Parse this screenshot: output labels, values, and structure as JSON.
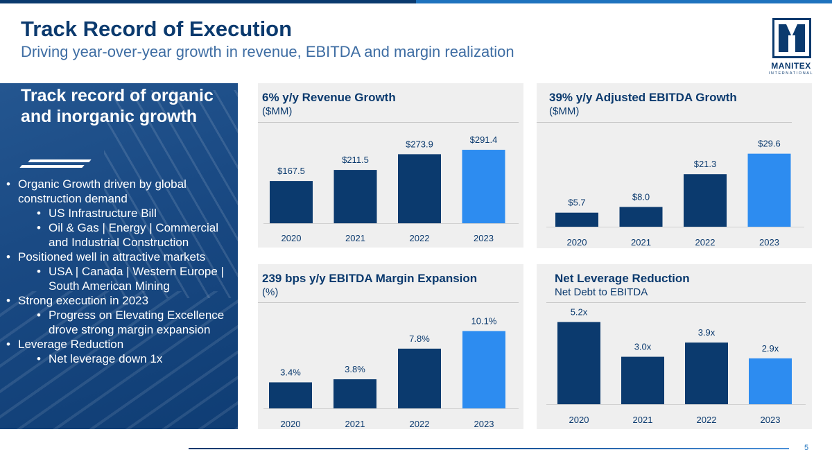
{
  "header": {
    "title": "Track Record of Execution",
    "subtitle": "Driving year-over-year growth in revenue, EBITDA and margin realization"
  },
  "logo": {
    "name": "MANITEX",
    "sub": "INTERNATIONAL"
  },
  "left_panel": {
    "heading": "Track record of organic and inorganic growth",
    "bullets": [
      {
        "level": 1,
        "text": "Organic Growth driven by global construction demand"
      },
      {
        "level": 2,
        "text": "US Infrastructure Bill"
      },
      {
        "level": 2,
        "text": "Oil & Gas | Energy | Commercial and Industrial Construction"
      },
      {
        "level": 1,
        "text": "Positioned well in attractive markets"
      },
      {
        "level": 2,
        "text": "USA | Canada | Western Europe | South American Mining"
      },
      {
        "level": 1,
        "text": "Strong execution in 2023"
      },
      {
        "level": 2,
        "text": "Progress on Elevating Excellence drove strong margin expansion"
      },
      {
        "level": 1,
        "text": "Leverage Reduction"
      },
      {
        "level": 2,
        "text": "Net leverage down 1x"
      }
    ]
  },
  "colors": {
    "dark_bar": "#0b3a6e",
    "highlight_bar": "#2d8cf0",
    "panel_bg": "#efefef"
  },
  "chart_data": [
    {
      "type": "bar",
      "title": "6% y/y Revenue Growth",
      "subtitle": "($MM)",
      "categories": [
        "2020",
        "2021",
        "2022",
        "2023"
      ],
      "values": [
        167.5,
        211.5,
        273.9,
        291.4
      ],
      "labels": [
        "$167.5",
        "$211.5",
        "$273.9",
        "$291.4"
      ],
      "highlight_index": 3,
      "ylim": [
        0,
        330
      ]
    },
    {
      "type": "bar",
      "title": "39% y/y Adjusted EBITDA Growth",
      "subtitle": "($MM)",
      "categories": [
        "2020",
        "2021",
        "2022",
        "2023"
      ],
      "values": [
        5.7,
        8.0,
        21.3,
        29.6
      ],
      "labels": [
        "$5.7",
        "$8.0",
        "$21.3",
        "$29.6"
      ],
      "highlight_index": 3,
      "ylim": [
        0,
        34
      ]
    },
    {
      "type": "bar",
      "title": "239 bps y/y EBITDA Margin Expansion",
      "subtitle": "(%)",
      "categories": [
        "2020",
        "2021",
        "2022",
        "2023"
      ],
      "values": [
        3.4,
        3.8,
        7.8,
        10.1
      ],
      "labels": [
        "3.4%",
        "3.8%",
        "7.8%",
        "10.1%"
      ],
      "highlight_index": 3,
      "ylim": [
        0,
        11.5
      ]
    },
    {
      "type": "bar",
      "title": "Net Leverage Reduction",
      "subtitle": "Net Debt to EBITDA",
      "categories": [
        "2020",
        "2021",
        "2022",
        "2023"
      ],
      "values": [
        5.2,
        3.0,
        3.9,
        2.9
      ],
      "labels": [
        "5.2x",
        "3.0x",
        "3.9x",
        "2.9x"
      ],
      "highlight_index": 3,
      "ylim": [
        0,
        5.7
      ]
    }
  ],
  "footer": {
    "page_number": "5"
  }
}
